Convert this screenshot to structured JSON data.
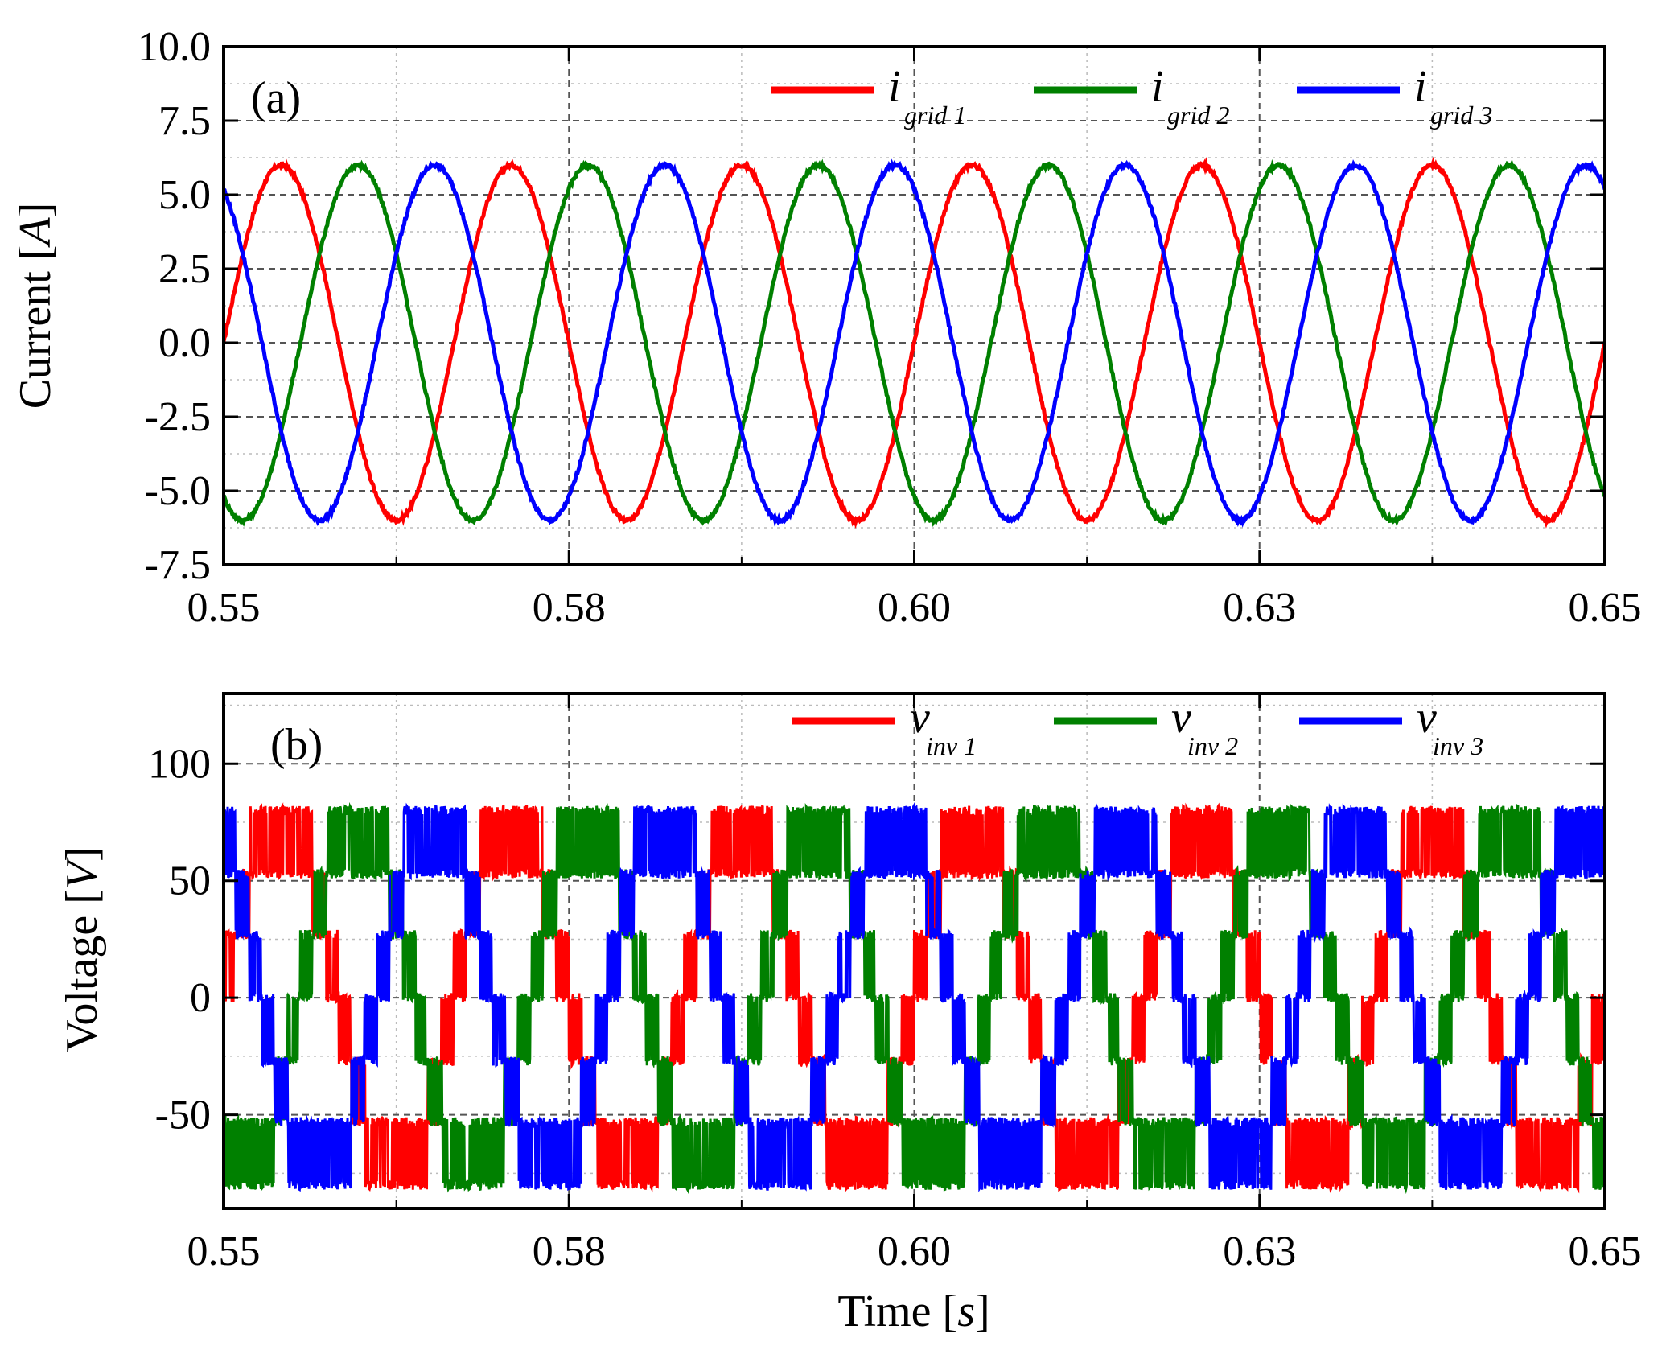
{
  "chart_data": [
    {
      "type": "line",
      "panel_label": "(a)",
      "xlabel": "",
      "ylabel": "Current",
      "ylabel_unit": "A",
      "xlim": [
        0.55,
        0.65
      ],
      "ylim": [
        -7.5,
        10.0
      ],
      "x_ticks": [
        0.55,
        0.575,
        0.6,
        0.625,
        0.65
      ],
      "x_tick_labels": [
        "0.55",
        "0.58",
        "0.60",
        "0.63",
        "0.65"
      ],
      "y_ticks": [
        -7.5,
        -5.0,
        -2.5,
        0.0,
        2.5,
        5.0,
        7.5,
        10.0
      ],
      "y_tick_labels": [
        "-7.5",
        "-5.0",
        "-2.5",
        "0.0",
        "2.5",
        "5.0",
        "7.5",
        "10.0"
      ],
      "grid": true,
      "legend_position": "top-right",
      "series": [
        {
          "name": "i",
          "sub": "grid 1",
          "color": "#ff0000",
          "amplitude": 6.0,
          "frequency_hz": 60,
          "phase_deg": 0
        },
        {
          "name": "i",
          "sub": "grid 2",
          "color": "#008000",
          "amplitude": 6.0,
          "frequency_hz": 60,
          "phase_deg": -120
        },
        {
          "name": "i",
          "sub": "grid 3",
          "color": "#0000ff",
          "amplitude": 6.0,
          "frequency_hz": 60,
          "phase_deg": 120
        }
      ]
    },
    {
      "type": "line",
      "panel_label": "(b)",
      "xlabel": "Time",
      "xlabel_unit": "s",
      "ylabel": "Voltage",
      "ylabel_unit": "V",
      "xlim": [
        0.55,
        0.65
      ],
      "ylim": [
        -90,
        130
      ],
      "x_ticks": [
        0.55,
        0.575,
        0.6,
        0.625,
        0.65
      ],
      "x_tick_labels": [
        "0.55",
        "0.58",
        "0.60",
        "0.63",
        "0.65"
      ],
      "y_ticks": [
        -50,
        0,
        50,
        100
      ],
      "y_tick_labels": [
        "-50",
        "0",
        "50",
        "100"
      ],
      "grid": true,
      "legend_position": "top-right",
      "series": [
        {
          "name": "v",
          "sub": "inv 1",
          "color": "#ff0000",
          "peak": 80,
          "levels": [
            -80,
            -53,
            -27,
            0,
            27,
            53,
            80
          ],
          "frequency_hz": 60,
          "phase_deg": 0
        },
        {
          "name": "v",
          "sub": "inv 2",
          "color": "#008000",
          "peak": 80,
          "levels": [
            -80,
            -53,
            -27,
            0,
            27,
            53,
            80
          ],
          "frequency_hz": 60,
          "phase_deg": -120
        },
        {
          "name": "v",
          "sub": "inv 3",
          "color": "#0000ff",
          "peak": 80,
          "levels": [
            -80,
            -53,
            -27,
            0,
            27,
            53,
            80
          ],
          "frequency_hz": 60,
          "phase_deg": 120
        }
      ]
    }
  ]
}
